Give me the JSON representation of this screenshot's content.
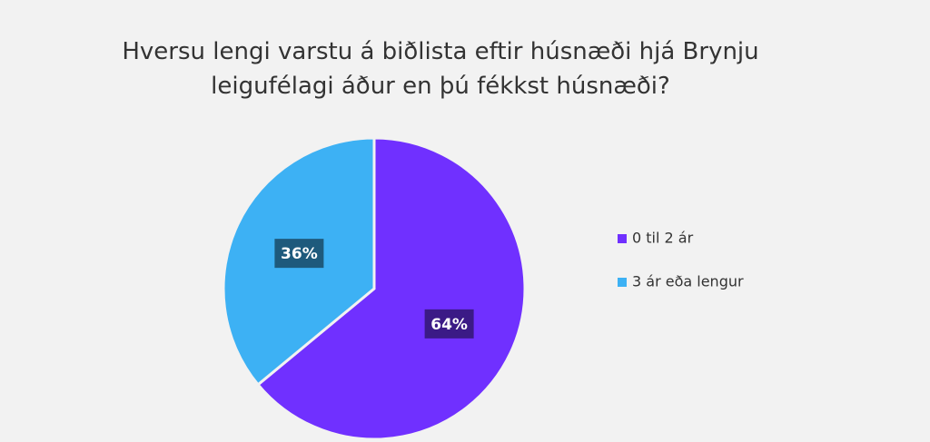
{
  "chart_data": {
    "type": "pie",
    "title": "Hversu lengi varstu á biðlista eftir húsnæði hjá Brynju leigufélagi áður en þú fékkst húsnæði?",
    "categories": [
      "0 til 2 ár",
      "3 ár eða lengur"
    ],
    "values": [
      64,
      36
    ],
    "value_labels": [
      "64%",
      "36%"
    ],
    "colors": [
      "#7030ff",
      "#3db1f4"
    ],
    "label_colors": [
      "#3b1a86",
      "#1e5a7c"
    ],
    "legend": "right"
  }
}
